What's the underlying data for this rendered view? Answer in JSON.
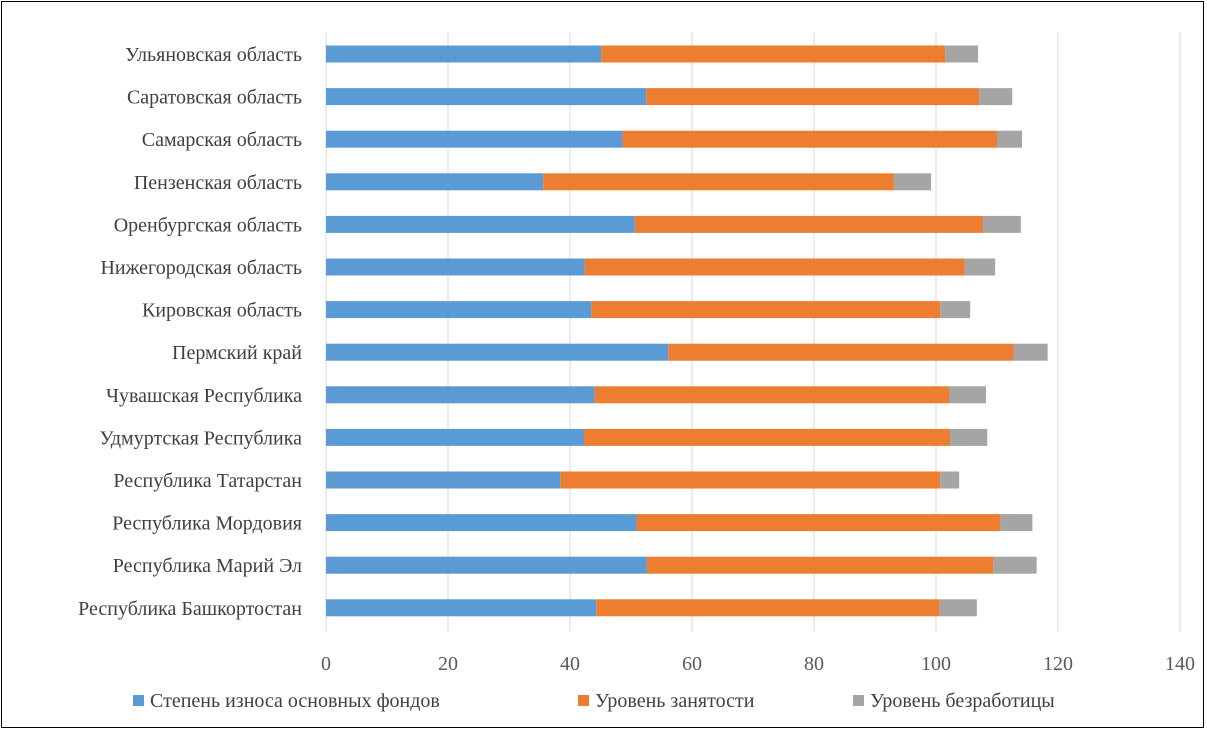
{
  "chart_data": {
    "type": "bar",
    "orientation": "horizontal",
    "stacked": true,
    "title": "",
    "xlabel": "",
    "ylabel": "",
    "xlim": [
      0,
      140
    ],
    "x_ticks": [
      "0",
      "20",
      "40",
      "60",
      "80",
      "100",
      "120",
      "140"
    ],
    "grid": "vertical",
    "legend_position": "bottom",
    "categories": [
      "Ульяновская область",
      "Саратовская область",
      "Самарская область",
      "Пензенская область",
      "Оренбургская область",
      "Нижегородская область",
      "Кировская область",
      "Пермский край",
      "Чувашская Республика",
      "Удмуртская Республика",
      "Республика Татарстан",
      "Республика Мордовия",
      "Республика Марий Эл",
      "Республика Башкортостан"
    ],
    "series": [
      {
        "name": "Степень износа основных фондов",
        "color": "#5b9bd5",
        "values": [
          45.1,
          52.5,
          48.6,
          35.6,
          50.6,
          42.4,
          43.5,
          56.1,
          44.0,
          42.3,
          38.4,
          50.9,
          52.6,
          44.3
        ]
      },
      {
        "name": "Уровень занятости",
        "color": "#ed7d31",
        "values": [
          56.4,
          54.6,
          61.4,
          57.5,
          57.1,
          62.3,
          57.2,
          56.6,
          58.2,
          60.0,
          62.3,
          59.6,
          56.8,
          56.3
        ]
      },
      {
        "name": "Уровень безработицы",
        "color": "#a5a5a5",
        "values": [
          5.4,
          5.4,
          4.1,
          6.1,
          6.2,
          5.0,
          4.9,
          5.6,
          6.0,
          6.1,
          3.1,
          5.3,
          7.1,
          6.1
        ]
      }
    ]
  }
}
